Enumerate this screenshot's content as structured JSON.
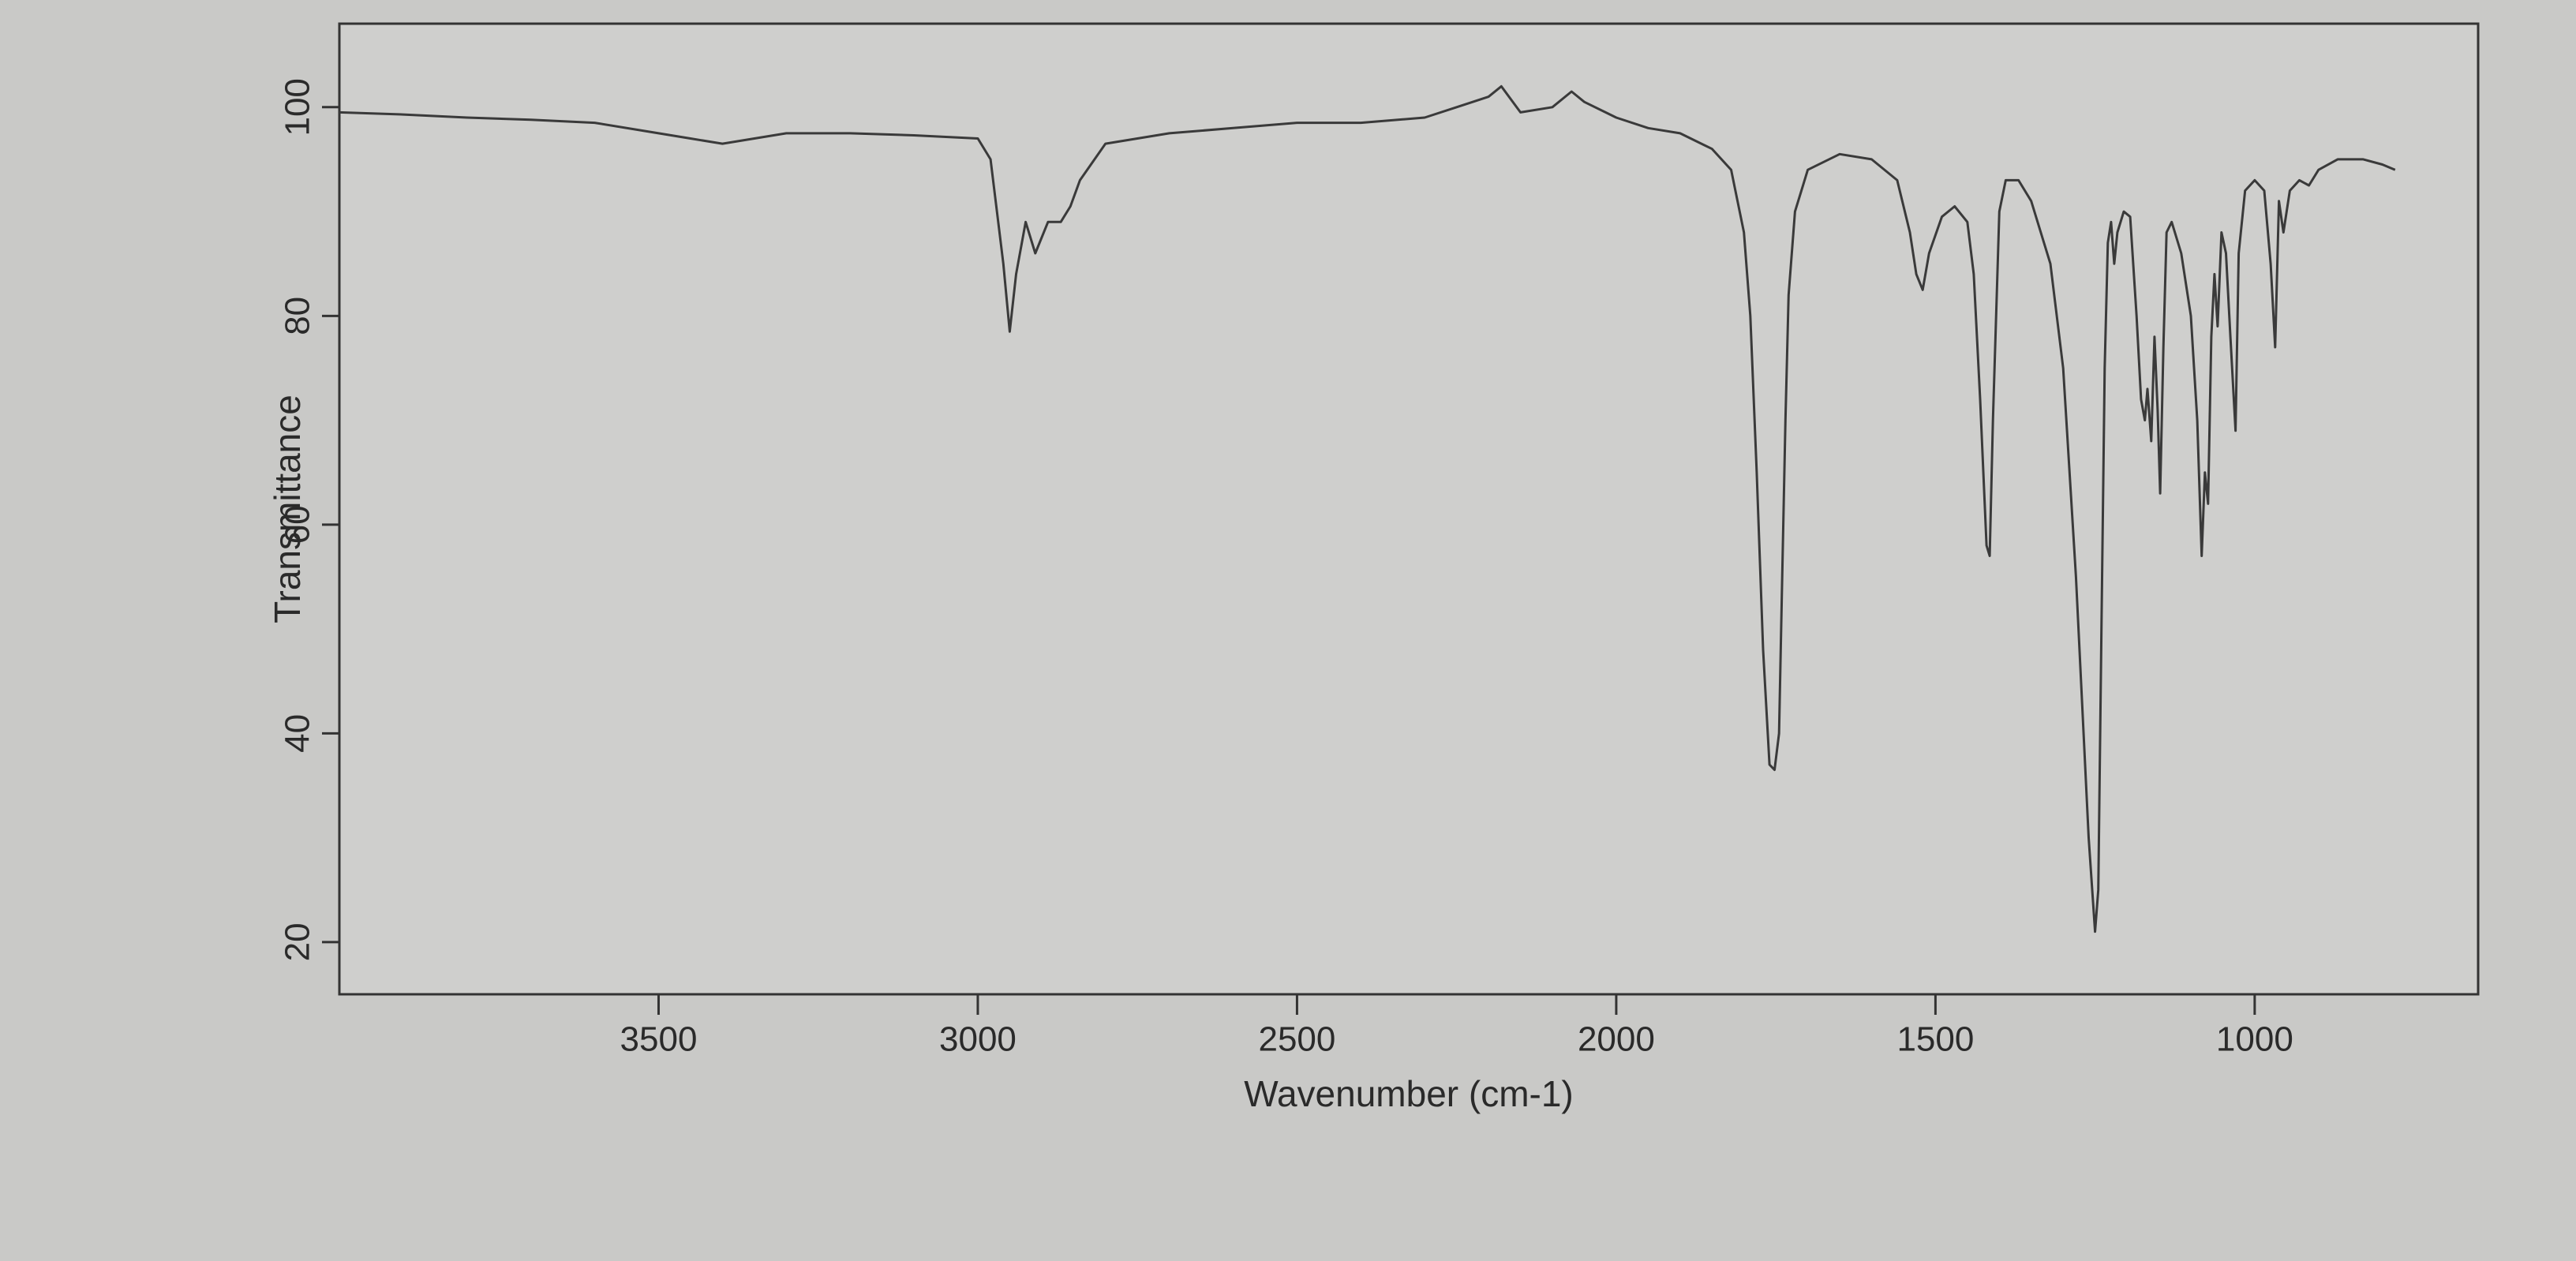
{
  "chart_data": {
    "type": "line",
    "x_label": "Wavenumber (cm-1)",
    "y_label": "Transmittance",
    "xlim": [
      4000,
      650
    ],
    "ylim": [
      15,
      108
    ],
    "xticks": [
      3500,
      3000,
      2500,
      2000,
      1500,
      1000
    ],
    "yticks": [
      20,
      40,
      60,
      80,
      100
    ],
    "x": [
      4000,
      3900,
      3800,
      3700,
      3600,
      3500,
      3450,
      3400,
      3300,
      3200,
      3100,
      3000,
      2980,
      2960,
      2950,
      2940,
      2925,
      2910,
      2890,
      2870,
      2855,
      2840,
      2800,
      2700,
      2600,
      2500,
      2400,
      2300,
      2250,
      2200,
      2180,
      2150,
      2100,
      2070,
      2050,
      2000,
      1950,
      1900,
      1850,
      1820,
      1800,
      1790,
      1780,
      1770,
      1760,
      1752,
      1745,
      1740,
      1735,
      1730,
      1720,
      1700,
      1650,
      1600,
      1560,
      1540,
      1530,
      1520,
      1510,
      1490,
      1470,
      1450,
      1440,
      1430,
      1420,
      1415,
      1410,
      1400,
      1390,
      1370,
      1350,
      1320,
      1300,
      1280,
      1260,
      1250,
      1245,
      1240,
      1235,
      1230,
      1225,
      1220,
      1215,
      1205,
      1195,
      1185,
      1178,
      1172,
      1168,
      1162,
      1157,
      1152,
      1148,
      1143,
      1138,
      1130,
      1115,
      1100,
      1090,
      1083,
      1078,
      1073,
      1068,
      1063,
      1058,
      1052,
      1045,
      1038,
      1030,
      1025,
      1015,
      1000,
      985,
      975,
      968,
      962,
      955,
      945,
      930,
      915,
      900,
      870,
      830,
      800,
      780
    ],
    "series": [
      {
        "color": "#3a3a3a",
        "values": [
          99.5,
          99.3,
          99,
          98.8,
          98.5,
          97.5,
          97,
          96.5,
          97.5,
          97.5,
          97.3,
          97,
          95,
          85,
          78.5,
          84,
          89,
          86,
          89,
          89,
          90.5,
          93,
          96.5,
          97.5,
          98,
          98.5,
          98.5,
          99,
          100,
          101,
          102,
          99.5,
          100,
          101.5,
          100.5,
          99,
          98,
          97.5,
          96,
          94,
          88,
          80,
          65,
          48,
          37,
          36.5,
          40,
          55,
          70,
          82,
          90,
          94,
          95.5,
          95,
          93,
          88,
          84,
          82.5,
          86,
          89.5,
          90.5,
          89,
          84,
          72,
          58,
          57,
          70,
          90,
          93,
          93,
          91,
          85,
          75,
          55,
          30,
          21,
          25,
          50,
          75,
          87,
          89,
          85,
          88,
          90,
          89.5,
          80,
          72,
          70,
          73,
          68,
          78,
          71,
          63,
          77,
          88,
          89,
          86,
          80,
          70,
          57,
          65,
          62,
          78,
          84,
          79,
          88,
          86,
          78,
          69,
          86,
          92,
          93,
          92,
          85,
          77,
          91,
          88,
          92,
          93,
          92.5,
          94,
          95,
          95,
          94.5,
          94
        ]
      }
    ]
  }
}
